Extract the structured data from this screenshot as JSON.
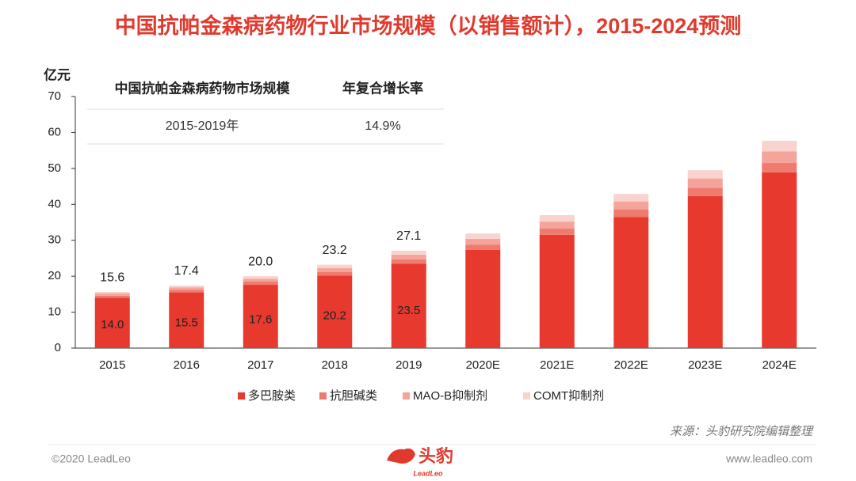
{
  "chart_data": {
    "type": "stacked-bar",
    "title": "中国抗帕金森病药物行业市场规模（以销售额计），2015-2024预测",
    "y_unit": "亿元",
    "categories": [
      "2015",
      "2016",
      "2017",
      "2018",
      "2019",
      "2020E",
      "2021E",
      "2022E",
      "2023E",
      "2024E"
    ],
    "series": [
      {
        "name": "多巴胺类",
        "color": "#e8392e",
        "values": [
          14.0,
          15.5,
          17.6,
          20.2,
          23.5,
          27.3,
          31.5,
          36.5,
          42.3,
          48.9
        ],
        "value_labels": [
          "14.0",
          "15.5",
          "17.6",
          "20.2",
          "23.5",
          null,
          null,
          null,
          null,
          null
        ]
      },
      {
        "name": "抗胆碱类",
        "color": "#ef7a6e",
        "values": [
          0.6,
          0.7,
          0.9,
          1.0,
          1.2,
          1.5,
          1.8,
          2.1,
          2.3,
          2.6
        ]
      },
      {
        "name": "MAO-B抑制剂",
        "color": "#f4a49b",
        "values": [
          0.6,
          0.7,
          0.8,
          1.1,
          1.3,
          1.6,
          1.9,
          2.2,
          2.6,
          3.2
        ]
      },
      {
        "name": "COMT抑制剂",
        "color": "#f9d3ce",
        "values": [
          0.4,
          0.5,
          0.7,
          0.9,
          1.1,
          1.5,
          1.8,
          2.1,
          2.3,
          3.0
        ]
      }
    ],
    "totals": {
      "values": [
        15.6,
        17.4,
        20,
        23.2,
        27.1
      ],
      "value_labels": [
        "15.6",
        "17.4",
        "20.0",
        "23.2",
        "27.1"
      ]
    },
    "ylim": [
      0,
      70
    ],
    "yticks": [
      0,
      10,
      20,
      30,
      40,
      50,
      60,
      70
    ],
    "legend": "bottom",
    "table": {
      "header": [
        "中国抗帕金森病药物市场规模",
        "年复合增长率"
      ],
      "row": [
        "2015-2019年",
        "14.9%"
      ]
    }
  },
  "footer": {
    "source": "来源：头豹研究院编辑整理",
    "copyright": "©2020 LeadLeo",
    "website": "www.leadleo.com",
    "logo_cn": "头豹",
    "logo_en": "LeadLeo"
  }
}
